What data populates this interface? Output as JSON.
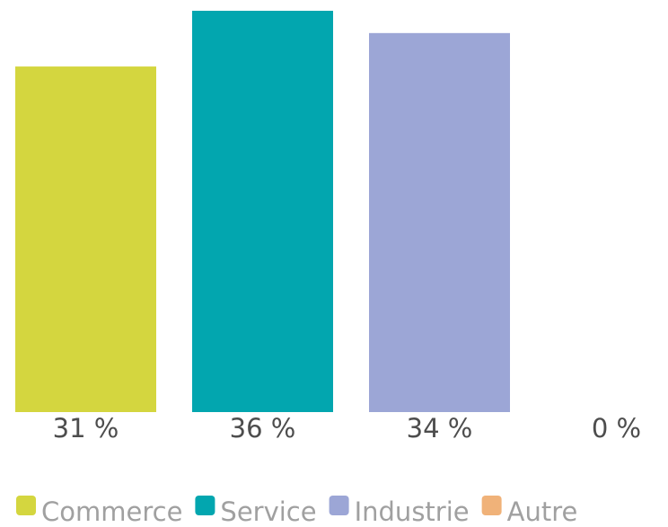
{
  "chart_data": {
    "type": "bar",
    "categories": [
      "Commerce",
      "Service",
      "Industrie",
      "Autre"
    ],
    "values": [
      31,
      36,
      34,
      0
    ],
    "value_labels": [
      "31 %",
      "36 %",
      "34 %",
      "0 %"
    ],
    "unit": "%",
    "colors": [
      "#d4d63f",
      "#02a6af",
      "#9ca6d6",
      "#f0b279"
    ],
    "ylim": [
      0,
      36
    ],
    "grid": false,
    "legend": {
      "position": "bottom",
      "entries": [
        "Commerce",
        "Service",
        "Industrie",
        "Autre"
      ]
    }
  }
}
